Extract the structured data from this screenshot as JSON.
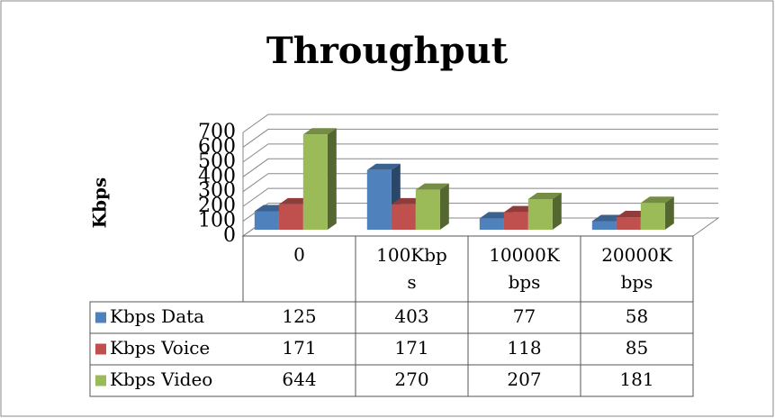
{
  "chart_data": {
    "type": "bar3d",
    "title": "Throughput",
    "y_label": "Kbps",
    "categories": [
      "0",
      "100Kbps",
      "10000Kbps",
      "20000Kbps"
    ],
    "series": [
      {
        "name": "Kbps Data",
        "color": "#4f81bd",
        "values": [
          125,
          403,
          77,
          58
        ]
      },
      {
        "name": "Kbps Voice",
        "color": "#c0504d",
        "values": [
          171,
          171,
          118,
          85
        ]
      },
      {
        "name": "Kbps Video",
        "color": "#9bbb59",
        "values": [
          644,
          270,
          207,
          181
        ]
      }
    ],
    "ylim": [
      0,
      700
    ],
    "yticks": [
      0,
      100,
      200,
      300,
      400,
      500,
      600,
      700
    ],
    "grid": true
  }
}
